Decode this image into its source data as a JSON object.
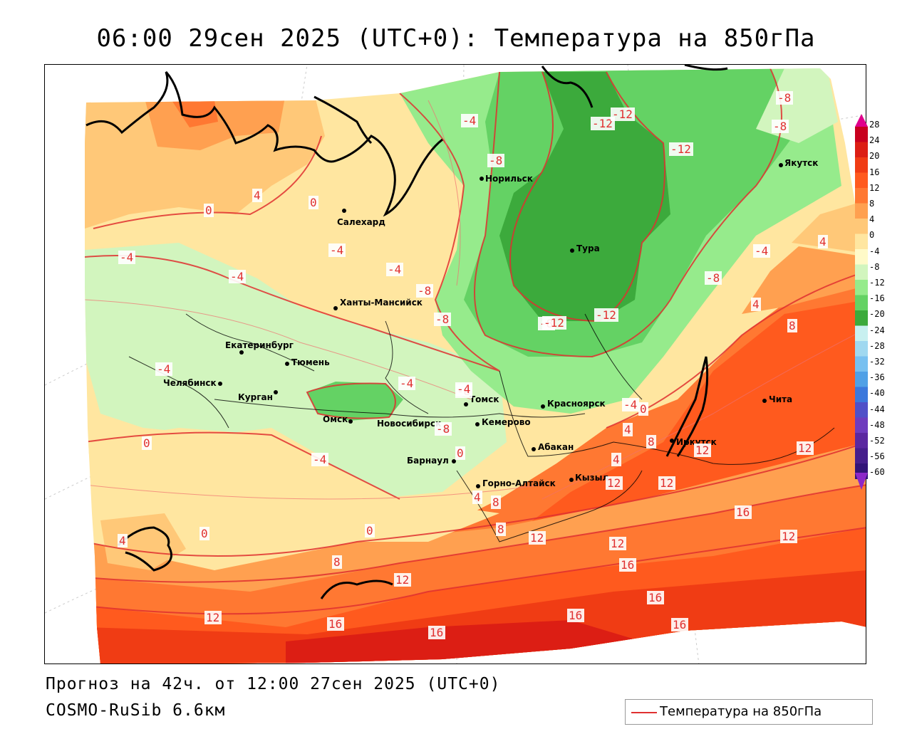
{
  "title": "06:00 29сен 2025 (UTC+0): Температура на 850гПа",
  "footer": {
    "forecast": "Прогноз на 42ч. от 12:00 27сен 2025 (UTC+0)",
    "model": "COSMO-RuSib 6.6км"
  },
  "legend": {
    "label": "Температура на 850гПа",
    "line_color": "#e03030"
  },
  "colorbar": {
    "ticks": [
      "28",
      "24",
      "20",
      "16",
      "12",
      "8",
      "4",
      "0",
      "-4",
      "-8",
      "-12",
      "-16",
      "-20",
      "-24",
      "-28",
      "-32",
      "-36",
      "-40",
      "-44",
      "-48",
      "-52",
      "-56",
      "-60"
    ],
    "colors": [
      "#c8001e",
      "#dc1e14",
      "#f03c14",
      "#ff5a1e",
      "#ff7832",
      "#ffa050",
      "#ffc878",
      "#ffe6a0",
      "#fffac8",
      "#d2f5be",
      "#96eb8c",
      "#64d264",
      "#3caa3c",
      "#c8f0f0",
      "#a0d8f0",
      "#78c0f0",
      "#50a0e6",
      "#3c78dc",
      "#5050c8",
      "#6e3cbe",
      "#5a28a0",
      "#461e8c",
      "#321478"
    ]
  },
  "cities": [
    {
      "name": "Якутск"
    },
    {
      "name": "Норильск"
    },
    {
      "name": "Салехард"
    },
    {
      "name": "Тура"
    },
    {
      "name": "Ханты-Мансийск"
    },
    {
      "name": "Екатеринбург"
    },
    {
      "name": "Тюмень"
    },
    {
      "name": "Челябинск"
    },
    {
      "name": "Курган"
    },
    {
      "name": "Омск"
    },
    {
      "name": "Новосибирск"
    },
    {
      "name": "Томск"
    },
    {
      "name": "Кемерово"
    },
    {
      "name": "Красноярск"
    },
    {
      "name": "Барнаул"
    },
    {
      "name": "Абакан"
    },
    {
      "name": "Горно-Алтайск"
    },
    {
      "name": "Кызыл"
    },
    {
      "name": "Иркутск"
    },
    {
      "name": "Чита"
    }
  ],
  "contour_labels": [
    "-4",
    "-8",
    "-12",
    "-12",
    "-12",
    "-8",
    "-8",
    "-8",
    "-4",
    "-4",
    "-4",
    "-8",
    "-8",
    "-8",
    "-12",
    "-12",
    "-8",
    "-4",
    "4",
    "8",
    "0",
    "4",
    "0",
    "-4",
    "4",
    "0",
    "-4",
    "0",
    "4",
    "8",
    "12",
    "16",
    "16",
    "16",
    "12",
    "16",
    "16",
    "16",
    "12",
    "12",
    "12",
    "16",
    "12",
    "12",
    "8",
    "8",
    "4",
    "8",
    "12",
    "12",
    "0",
    "-4",
    "4",
    "0",
    "-4",
    "-4",
    "0",
    "4",
    "-8",
    "-4"
  ]
}
